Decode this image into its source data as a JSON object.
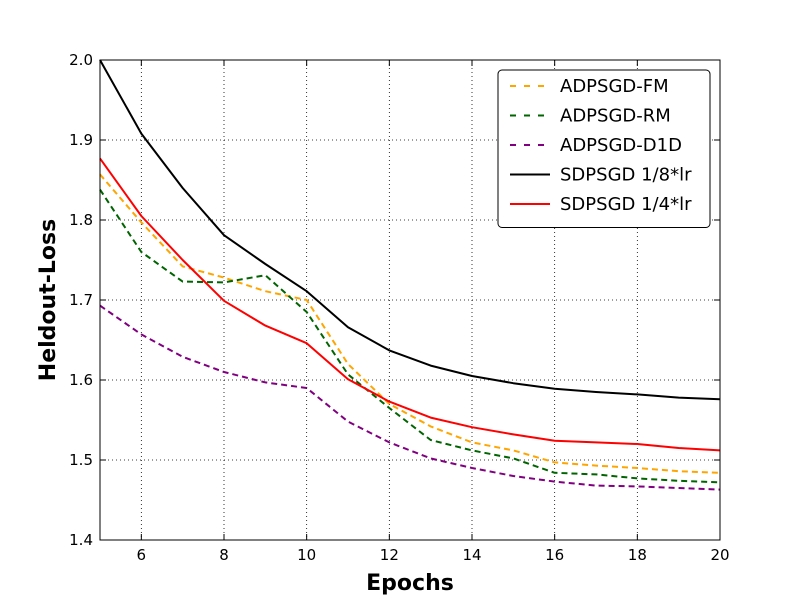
{
  "chart_data": {
    "type": "line",
    "title": "",
    "xlabel": "Epochs",
    "ylabel": "Heldout-Loss",
    "xlim": [
      5,
      20
    ],
    "ylim": [
      1.4,
      2.0
    ],
    "xticks": [
      6,
      8,
      10,
      12,
      14,
      16,
      18,
      20
    ],
    "xtick_labels": [
      "6",
      "8",
      "10",
      "12",
      "14",
      "16",
      "18",
      "20"
    ],
    "yticks": [
      1.4,
      1.5,
      1.6,
      1.7,
      1.8,
      1.9,
      2.0
    ],
    "ytick_labels": [
      "1.4",
      "1.5",
      "1.6",
      "1.7",
      "1.8",
      "1.9",
      "2.0"
    ],
    "grid": true,
    "legend_position": "top-right",
    "x": [
      5,
      6,
      7,
      8,
      9,
      10,
      11,
      12,
      13,
      14,
      15,
      16,
      17,
      18,
      19,
      20
    ],
    "series": [
      {
        "name": "ADPSGD-FM",
        "color": "#FFA500",
        "style": "dashed",
        "values": [
          1.857,
          1.797,
          1.742,
          1.728,
          1.711,
          1.7,
          1.62,
          1.57,
          1.542,
          1.522,
          1.512,
          1.497,
          1.493,
          1.49,
          1.486,
          1.484
        ]
      },
      {
        "name": "ADPSGD-RM",
        "color": "#006400",
        "style": "dashed",
        "values": [
          1.838,
          1.76,
          1.723,
          1.722,
          1.731,
          1.685,
          1.607,
          1.565,
          1.525,
          1.512,
          1.502,
          1.484,
          1.482,
          1.477,
          1.474,
          1.472
        ]
      },
      {
        "name": "ADPSGD-D1D",
        "color": "#800080",
        "style": "dashed",
        "values": [
          1.693,
          1.657,
          1.629,
          1.61,
          1.597,
          1.59,
          1.548,
          1.522,
          1.502,
          1.49,
          1.48,
          1.473,
          1.468,
          1.467,
          1.465,
          1.463
        ]
      },
      {
        "name": "SDPSGD 1/8*lr",
        "color": "#000000",
        "style": "solid",
        "values": [
          2.0,
          1.908,
          1.84,
          1.781,
          1.745,
          1.711,
          1.666,
          1.637,
          1.618,
          1.605,
          1.596,
          1.589,
          1.585,
          1.582,
          1.578,
          1.576
        ]
      },
      {
        "name": "SDPSGD 1/4*lr",
        "color": "#FF0000",
        "style": "solid",
        "values": [
          1.877,
          1.805,
          1.75,
          1.699,
          1.668,
          1.646,
          1.601,
          1.573,
          1.553,
          1.541,
          1.532,
          1.524,
          1.522,
          1.52,
          1.515,
          1.512
        ]
      }
    ]
  }
}
